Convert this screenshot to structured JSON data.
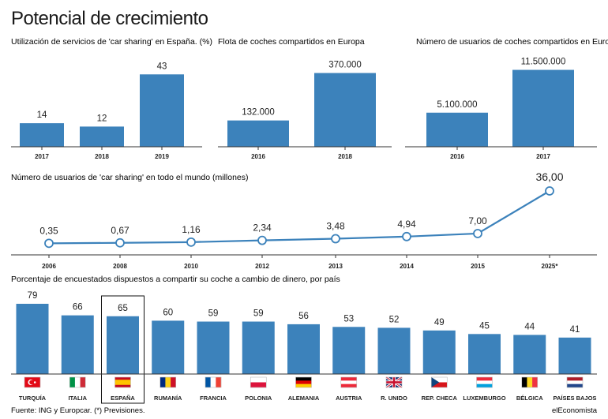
{
  "page_title": "Potencial de crecimiento",
  "colors": {
    "bar": "#3c82bb",
    "axis": "#333333",
    "text": "#1a1a1a",
    "highlight_box": "#111111"
  },
  "chart_data": [
    {
      "id": "utilizacion",
      "type": "bar",
      "title": "Utilización de servicios de 'car sharing' en España. (%)",
      "categories": [
        "2017",
        "2018",
        "2019"
      ],
      "values": [
        14,
        12,
        43
      ],
      "value_labels": [
        "14",
        "12",
        "43"
      ],
      "ylim": [
        0,
        45
      ]
    },
    {
      "id": "flota",
      "type": "bar",
      "title": "Flota de coches compartidos en Europa",
      "categories": [
        "2016",
        "2018"
      ],
      "values": [
        132000,
        370000
      ],
      "value_labels": [
        "132.000",
        "370.000"
      ],
      "ylim": [
        0,
        380000
      ]
    },
    {
      "id": "usuarios_europa",
      "type": "bar",
      "title": "Número de usuarios de coches compartidos en Europa",
      "categories": [
        "2016",
        "2017"
      ],
      "values": [
        5100000,
        11500000
      ],
      "value_labels": [
        "5.100.000",
        "11.500.000"
      ],
      "ylim": [
        0,
        11800000
      ]
    },
    {
      "id": "usuarios_mundo",
      "type": "line",
      "title": "Número de usuarios de 'car sharing' en todo el mundo (millones)",
      "categories": [
        "2006",
        "2008",
        "2010",
        "2012",
        "2013",
        "2014",
        "2015",
        "2025*"
      ],
      "values": [
        0.35,
        0.67,
        1.16,
        2.34,
        3.48,
        4.94,
        7.0,
        36.0
      ],
      "value_labels": [
        "0,35",
        "0,67",
        "1,16",
        "2,34",
        "3,48",
        "4,94",
        "7,00",
        "36,00"
      ],
      "ylim": [
        0,
        36
      ]
    },
    {
      "id": "porcentaje_paises",
      "type": "bar",
      "title": "Porcentaje de encuestados dispuestos a compartir su coche a cambio de dinero, por país",
      "categories": [
        "TURQUÍA",
        "ITALIA",
        "ESPAÑA",
        "RUMANÍA",
        "FRANCIA",
        "POLONIA",
        "ALEMANIA",
        "AUSTRIA",
        "R. UNIDO",
        "REP. CHECA",
        "LUXEMBURGO",
        "BÉLGICA",
        "PAÍSES BAJOS"
      ],
      "values": [
        79,
        66,
        65,
        60,
        59,
        59,
        56,
        53,
        52,
        49,
        45,
        44,
        41
      ],
      "value_labels": [
        "79",
        "66",
        "65",
        "60",
        "59",
        "59",
        "56",
        "53",
        "52",
        "49",
        "45",
        "44",
        "41"
      ],
      "flags": [
        "flag-turkey",
        "flag-italy",
        "flag-spain",
        "flag-romania",
        "flag-france",
        "flag-poland",
        "flag-germany",
        "flag-austria",
        "flag-uk",
        "flag-czech",
        "flag-luxembourg",
        "flag-belgium",
        "flag-netherlands"
      ],
      "highlight": "ESPAÑA",
      "ylim": [
        0,
        82
      ]
    }
  ],
  "footer": {
    "source": "Fuente: ING y Europcar. (*) Previsiones.",
    "brand": "elEconomista"
  }
}
